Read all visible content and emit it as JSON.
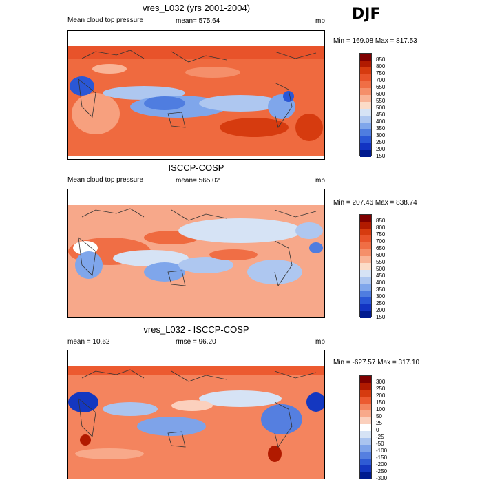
{
  "season": "DJF",
  "panels": [
    {
      "title": "vres_L032 (yrs 2001-2004)",
      "left_label": "Mean cloud top pressure",
      "center_label": "mean= 575.64",
      "units": "mb",
      "minmax": "Min = 169.08 Max = 817.53",
      "levels": [
        "850",
        "800",
        "750",
        "700",
        "650",
        "600",
        "550",
        "500",
        "450",
        "400",
        "350",
        "300",
        "250",
        "200",
        "150"
      ]
    },
    {
      "title": "ISCCP-COSP",
      "left_label": "Mean cloud top pressure",
      "center_label": "mean= 565.02",
      "units": "mb",
      "minmax": "Min = 207.46 Max = 838.74",
      "levels": [
        "850",
        "800",
        "750",
        "700",
        "650",
        "600",
        "550",
        "500",
        "450",
        "400",
        "350",
        "300",
        "250",
        "200",
        "150"
      ]
    },
    {
      "title": "vres_L032 - ISCCP-COSP",
      "left_label": "mean =  10.62",
      "center_label": "rmse =  96.20",
      "units": "mb",
      "minmax": "Min = -627.57 Max = 317.10",
      "levels": [
        "300",
        "250",
        "200",
        "150",
        "100",
        "50",
        "25",
        "0",
        "-25",
        "-50",
        "-100",
        "-150",
        "-200",
        "-250",
        "-300"
      ]
    }
  ],
  "colors": {
    "abs_scale": [
      "#7f0000",
      "#b11a00",
      "#d63b0f",
      "#e8532a",
      "#f06e45",
      "#f58f6a",
      "#f9b497",
      "#fcdcc8",
      "#d6e3f5",
      "#aec7f0",
      "#7fa6eb",
      "#4f7de0",
      "#2a57d6",
      "#1233c2",
      "#001a8f"
    ],
    "diff_scale": [
      "#7f0000",
      "#b11a00",
      "#d63b0f",
      "#ec5a30",
      "#f4845e",
      "#f8a98a",
      "#fbd0bd",
      "#ffffff",
      "#d6e3f5",
      "#aac4ef",
      "#7ea3e9",
      "#557fe0",
      "#2f5bd4",
      "#1437c0",
      "#001a8f"
    ]
  }
}
